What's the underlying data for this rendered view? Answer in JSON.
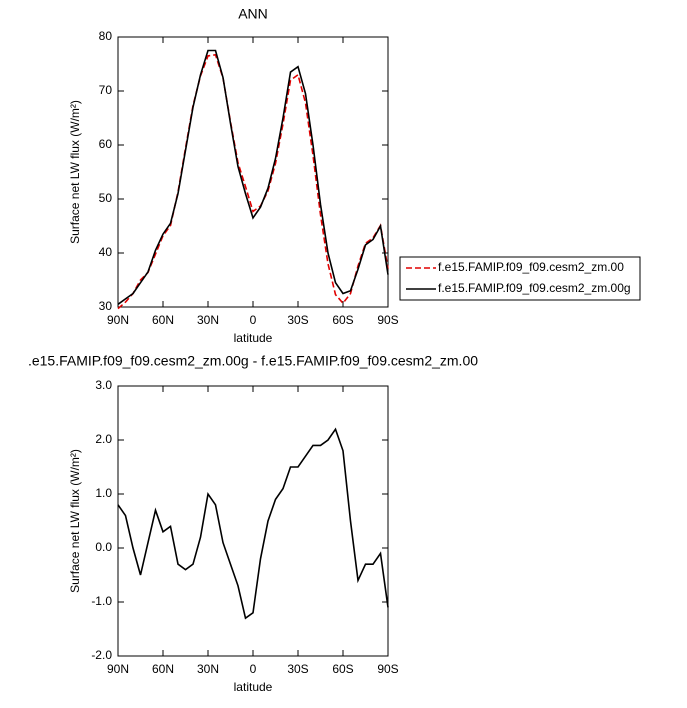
{
  "chart_data": [
    {
      "type": "line",
      "title": "ANN",
      "x_label": "latitude",
      "y_label": "Surface net LW flux (W/m²)",
      "x": [
        90,
        85,
        80,
        75,
        70,
        65,
        60,
        55,
        50,
        45,
        40,
        35,
        30,
        25,
        20,
        15,
        10,
        5,
        0,
        -5,
        -10,
        -15,
        -20,
        -25,
        -30,
        -35,
        -40,
        -45,
        -50,
        -55,
        -60,
        -65,
        -70,
        -75,
        -80,
        -85,
        -90
      ],
      "xlim": [
        90,
        -90
      ],
      "xticks": [
        {
          "value": 90,
          "label": "90N"
        },
        {
          "value": 60,
          "label": "60N"
        },
        {
          "value": 30,
          "label": "30N"
        },
        0,
        {
          "value": -30,
          "label": "30S"
        },
        {
          "value": -60,
          "label": "60S"
        },
        {
          "value": -90,
          "label": "90S"
        }
      ],
      "ylim": [
        30,
        80
      ],
      "yticks": [
        30,
        40,
        50,
        60,
        70,
        80
      ],
      "legend": "outside-right",
      "series": [
        {
          "name": "f.e15.FAMIP.f09_f09.cesm2_zm.00",
          "color": "#e00000",
          "dash": true,
          "values": [
            29.7,
            30.9,
            32.5,
            35,
            36.4,
            39.8,
            43.2,
            45.1,
            51.3,
            59.4,
            67.3,
            72.8,
            76.5,
            76.7,
            72.4,
            64.3,
            56.7,
            52.3,
            47.7,
            48.7,
            51.5,
            56.6,
            63.9,
            72,
            73,
            67.8,
            58.1,
            47.1,
            38,
            32.3,
            30.7,
            32.5,
            37.6,
            41.8,
            42.8,
            45.1,
            37.1
          ]
        },
        {
          "name": "f.e15.FAMIP.f09_f09.cesm2_zm.00g",
          "color": "#000000",
          "dash": false,
          "values": [
            30.5,
            31.5,
            32.5,
            34.5,
            36.5,
            40.5,
            43.5,
            45.5,
            51,
            59,
            67,
            73,
            77.5,
            77.5,
            72.5,
            64,
            56,
            51,
            46.5,
            48.5,
            52,
            57.5,
            65,
            73.5,
            74.5,
            69.5,
            60,
            49,
            40,
            34.5,
            32.5,
            33,
            37,
            41.5,
            42.5,
            45,
            36
          ]
        }
      ]
    },
    {
      "type": "line",
      "title": ".e15.FAMIP.f09_f09.cesm2_zm.00g - f.e15.FAMIP.f09_f09.cesm2_zm.00",
      "x_label": "latitude",
      "y_label": "Surface net LW flux (W/m²)",
      "x": [
        90,
        85,
        80,
        75,
        70,
        65,
        60,
        55,
        50,
        45,
        40,
        35,
        30,
        25,
        20,
        15,
        10,
        5,
        0,
        -5,
        -10,
        -15,
        -20,
        -25,
        -30,
        -35,
        -40,
        -45,
        -50,
        -55,
        -60,
        -65,
        -70,
        -75,
        -80,
        -85,
        -90
      ],
      "xlim": [
        90,
        -90
      ],
      "xticks": [
        {
          "value": 90,
          "label": "90N"
        },
        {
          "value": 60,
          "label": "60N"
        },
        {
          "value": 30,
          "label": "30N"
        },
        0,
        {
          "value": -30,
          "label": "30S"
        },
        {
          "value": -60,
          "label": "60S"
        },
        {
          "value": -90,
          "label": "90S"
        }
      ],
      "ylim": [
        -2,
        3
      ],
      "yticks": [
        {
          "value": -2,
          "label": "-2.0"
        },
        {
          "value": -1,
          "label": "-1.0"
        },
        {
          "value": 0,
          "label": "0.0"
        },
        {
          "value": 1,
          "label": "1.0"
        },
        {
          "value": 2,
          "label": "2.0"
        },
        {
          "value": 3,
          "label": "3.0"
        }
      ],
      "series": [
        {
          "color": "#000000",
          "dash": false,
          "values": [
            0.8,
            0.6,
            0,
            -0.5,
            0.1,
            0.7,
            0.3,
            0.4,
            -0.3,
            -0.4,
            -0.3,
            0.2,
            1.0,
            0.8,
            0.1,
            -0.3,
            -0.7,
            -1.3,
            -1.2,
            -0.2,
            0.5,
            0.9,
            1.1,
            1.5,
            1.5,
            1.7,
            1.9,
            1.9,
            2.0,
            2.2,
            1.8,
            0.5,
            -0.6,
            -0.3,
            -0.3,
            -0.1,
            -1.1
          ]
        }
      ]
    }
  ]
}
